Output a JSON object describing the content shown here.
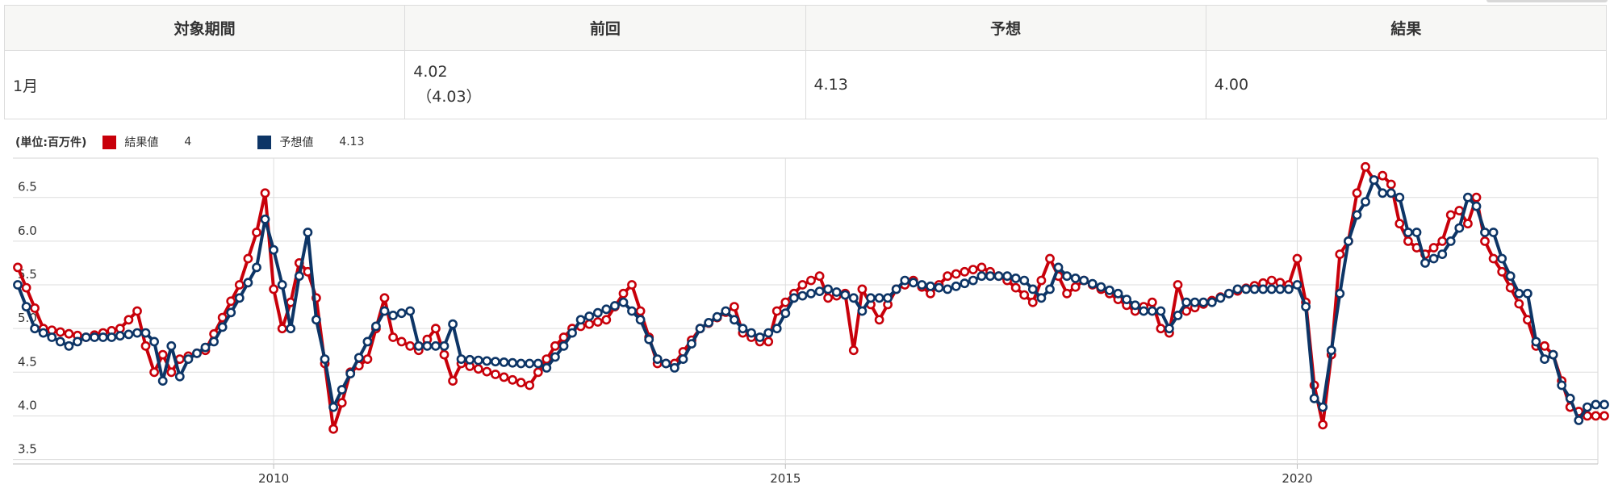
{
  "table": {
    "headers": [
      "対象期間",
      "前回",
      "予想",
      "結果"
    ],
    "row": {
      "period": "1月",
      "previous": "4.02",
      "previous_revised": "（4.03）",
      "forecast": "4.13",
      "result": "4.00"
    }
  },
  "legend": {
    "unit": "(単位:百万件)",
    "items": [
      {
        "label": "結果値",
        "value": "4",
        "color": "#c8000a"
      },
      {
        "label": "予想値",
        "value": "4.13",
        "color": "#0d3566"
      }
    ]
  },
  "chart_data": {
    "type": "line",
    "x_start": "2007-07",
    "x_end": "2023-01",
    "frequency": "monthly",
    "x_ticks": [
      "2010",
      "2015",
      "2020"
    ],
    "y_ticks": [
      "3.5",
      "4.0",
      "4.5",
      "5.0",
      "5.5",
      "6.0",
      "6.5"
    ],
    "ylim": [
      3.45,
      6.95
    ],
    "grid": true,
    "legend_position": "top-left",
    "series": [
      {
        "name": "結果値",
        "color": "#c8000a",
        "anchors": [
          [
            "2007-07",
            5.7
          ],
          [
            "2007-10",
            5.0
          ],
          [
            "2008-03",
            4.9
          ],
          [
            "2008-07",
            5.0
          ],
          [
            "2008-09",
            5.2
          ],
          [
            "2008-10",
            4.8
          ],
          [
            "2008-11",
            4.5
          ],
          [
            "2008-12",
            4.7
          ],
          [
            "2009-01",
            4.5
          ],
          [
            "2009-02",
            4.65
          ],
          [
            "2009-05",
            4.75
          ],
          [
            "2009-09",
            5.5
          ],
          [
            "2009-11",
            6.1
          ],
          [
            "2009-12",
            6.55
          ],
          [
            "2010-01",
            5.45
          ],
          [
            "2010-02",
            5.0
          ],
          [
            "2010-03",
            5.3
          ],
          [
            "2010-04",
            5.75
          ],
          [
            "2010-05",
            5.65
          ],
          [
            "2010-06",
            5.35
          ],
          [
            "2010-08",
            3.85
          ],
          [
            "2010-09",
            4.15
          ],
          [
            "2010-10",
            4.5
          ],
          [
            "2010-12",
            4.65
          ],
          [
            "2011-02",
            5.35
          ],
          [
            "2011-03",
            4.9
          ],
          [
            "2011-06",
            4.75
          ],
          [
            "2011-08",
            5.0
          ],
          [
            "2011-10",
            4.4
          ],
          [
            "2011-11",
            4.6
          ],
          [
            "2012-07",
            4.35
          ],
          [
            "2012-10",
            4.8
          ],
          [
            "2012-12",
            5.0
          ],
          [
            "2013-04",
            5.1
          ],
          [
            "2013-06",
            5.4
          ],
          [
            "2013-07",
            5.5
          ],
          [
            "2013-08",
            5.2
          ],
          [
            "2013-09",
            4.9
          ],
          [
            "2013-10",
            4.6
          ],
          [
            "2013-12",
            4.6
          ],
          [
            "2014-03",
            5.0
          ],
          [
            "2014-07",
            5.25
          ],
          [
            "2014-08",
            4.95
          ],
          [
            "2014-10",
            4.85
          ],
          [
            "2014-11",
            4.85
          ],
          [
            "2014-12",
            5.2
          ],
          [
            "2015-03",
            5.5
          ],
          [
            "2015-05",
            5.6
          ],
          [
            "2015-06",
            5.35
          ],
          [
            "2015-08",
            5.4
          ],
          [
            "2015-09",
            4.75
          ],
          [
            "2015-10",
            5.45
          ],
          [
            "2015-12",
            5.1
          ],
          [
            "2016-02",
            5.45
          ],
          [
            "2016-04",
            5.55
          ],
          [
            "2016-06",
            5.4
          ],
          [
            "2016-08",
            5.6
          ],
          [
            "2016-10",
            5.65
          ],
          [
            "2016-12",
            5.7
          ],
          [
            "2017-03",
            5.55
          ],
          [
            "2017-06",
            5.3
          ],
          [
            "2017-08",
            5.8
          ],
          [
            "2017-10",
            5.4
          ],
          [
            "2017-12",
            5.55
          ],
          [
            "2018-03",
            5.4
          ],
          [
            "2018-06",
            5.2
          ],
          [
            "2018-08",
            5.3
          ],
          [
            "2018-09",
            5.0
          ],
          [
            "2018-10",
            4.95
          ],
          [
            "2018-11",
            5.5
          ],
          [
            "2018-12",
            5.2
          ],
          [
            "2019-05",
            5.4
          ],
          [
            "2019-10",
            5.55
          ],
          [
            "2019-12",
            5.5
          ],
          [
            "2020-01",
            5.8
          ],
          [
            "2020-02",
            5.3
          ],
          [
            "2020-03",
            4.35
          ],
          [
            "2020-04",
            3.9
          ],
          [
            "2020-05",
            4.7
          ],
          [
            "2020-06",
            5.85
          ],
          [
            "2020-07",
            6.0
          ],
          [
            "2020-08",
            6.55
          ],
          [
            "2020-09",
            6.85
          ],
          [
            "2020-10",
            6.7
          ],
          [
            "2020-11",
            6.75
          ],
          [
            "2020-12",
            6.65
          ],
          [
            "2021-01",
            6.2
          ],
          [
            "2021-02",
            6.0
          ],
          [
            "2021-04",
            5.85
          ],
          [
            "2021-06",
            6.0
          ],
          [
            "2021-07",
            6.3
          ],
          [
            "2021-08",
            6.35
          ],
          [
            "2021-09",
            6.2
          ],
          [
            "2021-10",
            6.5
          ],
          [
            "2021-11",
            6.0
          ],
          [
            "2021-12",
            5.8
          ],
          [
            "2022-01",
            5.65
          ],
          [
            "2022-04",
            5.1
          ],
          [
            "2022-05",
            4.8
          ],
          [
            "2022-06",
            4.8
          ],
          [
            "2022-07",
            4.7
          ],
          [
            "2022-08",
            4.4
          ],
          [
            "2022-09",
            4.1
          ],
          [
            "2022-10",
            4.05
          ],
          [
            "2022-11",
            4.0
          ],
          [
            "2022-12",
            4.0
          ],
          [
            "2023-01",
            4.0
          ]
        ]
      },
      {
        "name": "予想値",
        "color": "#0d3566",
        "anchors": [
          [
            "2007-07",
            5.5
          ],
          [
            "2007-08",
            5.25
          ],
          [
            "2007-09",
            5.0
          ],
          [
            "2007-10",
            4.95
          ],
          [
            "2008-01",
            4.8
          ],
          [
            "2008-03",
            4.9
          ],
          [
            "2008-06",
            4.9
          ],
          [
            "2008-09",
            4.95
          ],
          [
            "2008-10",
            4.95
          ],
          [
            "2008-11",
            4.85
          ],
          [
            "2008-12",
            4.4
          ],
          [
            "2009-01",
            4.8
          ],
          [
            "2009-02",
            4.45
          ],
          [
            "2009-03",
            4.65
          ],
          [
            "2009-06",
            4.85
          ],
          [
            "2009-09",
            5.35
          ],
          [
            "2009-11",
            5.7
          ],
          [
            "2009-12",
            6.25
          ],
          [
            "2010-01",
            5.9
          ],
          [
            "2010-02",
            5.5
          ],
          [
            "2010-03",
            5.0
          ],
          [
            "2010-04",
            5.6
          ],
          [
            "2010-05",
            6.1
          ],
          [
            "2010-06",
            5.1
          ],
          [
            "2010-07",
            4.65
          ],
          [
            "2010-08",
            4.1
          ],
          [
            "2010-09",
            4.3
          ],
          [
            "2010-12",
            4.85
          ],
          [
            "2011-02",
            5.2
          ],
          [
            "2011-03",
            5.15
          ],
          [
            "2011-05",
            5.2
          ],
          [
            "2011-06",
            4.8
          ],
          [
            "2011-09",
            4.8
          ],
          [
            "2011-10",
            5.05
          ],
          [
            "2011-11",
            4.65
          ],
          [
            "2012-06",
            4.6
          ],
          [
            "2012-08",
            4.6
          ],
          [
            "2012-09",
            4.55
          ],
          [
            "2012-11",
            4.8
          ],
          [
            "2013-01",
            5.1
          ],
          [
            "2013-06",
            5.3
          ],
          [
            "2013-08",
            5.1
          ],
          [
            "2013-10",
            4.65
          ],
          [
            "2013-12",
            4.55
          ],
          [
            "2014-01",
            4.65
          ],
          [
            "2014-03",
            5.0
          ],
          [
            "2014-06",
            5.2
          ],
          [
            "2014-08",
            5.0
          ],
          [
            "2014-10",
            4.9
          ],
          [
            "2014-12",
            5.0
          ],
          [
            "2015-02",
            5.35
          ],
          [
            "2015-06",
            5.45
          ],
          [
            "2015-09",
            5.35
          ],
          [
            "2015-10",
            5.2
          ],
          [
            "2015-11",
            5.35
          ],
          [
            "2016-01",
            5.35
          ],
          [
            "2016-03",
            5.55
          ],
          [
            "2016-05",
            5.5
          ],
          [
            "2016-08",
            5.45
          ],
          [
            "2016-11",
            5.55
          ],
          [
            "2016-12",
            5.6
          ],
          [
            "2017-03",
            5.6
          ],
          [
            "2017-05",
            5.55
          ],
          [
            "2017-07",
            5.35
          ],
          [
            "2017-08",
            5.45
          ],
          [
            "2017-09",
            5.7
          ],
          [
            "2017-10",
            5.6
          ],
          [
            "2017-12",
            5.55
          ],
          [
            "2018-04",
            5.4
          ],
          [
            "2018-07",
            5.2
          ],
          [
            "2018-09",
            5.2
          ],
          [
            "2018-10",
            5.0
          ],
          [
            "2018-12",
            5.3
          ],
          [
            "2019-03",
            5.3
          ],
          [
            "2019-06",
            5.45
          ],
          [
            "2019-12",
            5.45
          ],
          [
            "2020-01",
            5.5
          ],
          [
            "2020-02",
            5.25
          ],
          [
            "2020-03",
            4.2
          ],
          [
            "2020-04",
            4.1
          ],
          [
            "2020-05",
            4.75
          ],
          [
            "2020-06",
            5.4
          ],
          [
            "2020-07",
            6.0
          ],
          [
            "2020-08",
            6.3
          ],
          [
            "2020-09",
            6.45
          ],
          [
            "2020-10",
            6.7
          ],
          [
            "2020-11",
            6.55
          ],
          [
            "2020-12",
            6.55
          ],
          [
            "2021-01",
            6.5
          ],
          [
            "2021-02",
            6.1
          ],
          [
            "2021-03",
            6.1
          ],
          [
            "2021-04",
            5.75
          ],
          [
            "2021-06",
            5.85
          ],
          [
            "2021-08",
            6.15
          ],
          [
            "2021-09",
            6.5
          ],
          [
            "2021-10",
            6.4
          ],
          [
            "2021-11",
            6.1
          ],
          [
            "2021-12",
            6.1
          ],
          [
            "2022-01",
            5.8
          ],
          [
            "2022-03",
            5.4
          ],
          [
            "2022-04",
            5.4
          ],
          [
            "2022-05",
            4.85
          ],
          [
            "2022-06",
            4.65
          ],
          [
            "2022-07",
            4.7
          ],
          [
            "2022-08",
            4.35
          ],
          [
            "2022-09",
            4.2
          ],
          [
            "2022-10",
            3.95
          ],
          [
            "2022-11",
            4.1
          ],
          [
            "2022-12",
            4.13
          ],
          [
            "2023-01",
            4.13
          ]
        ]
      }
    ]
  }
}
